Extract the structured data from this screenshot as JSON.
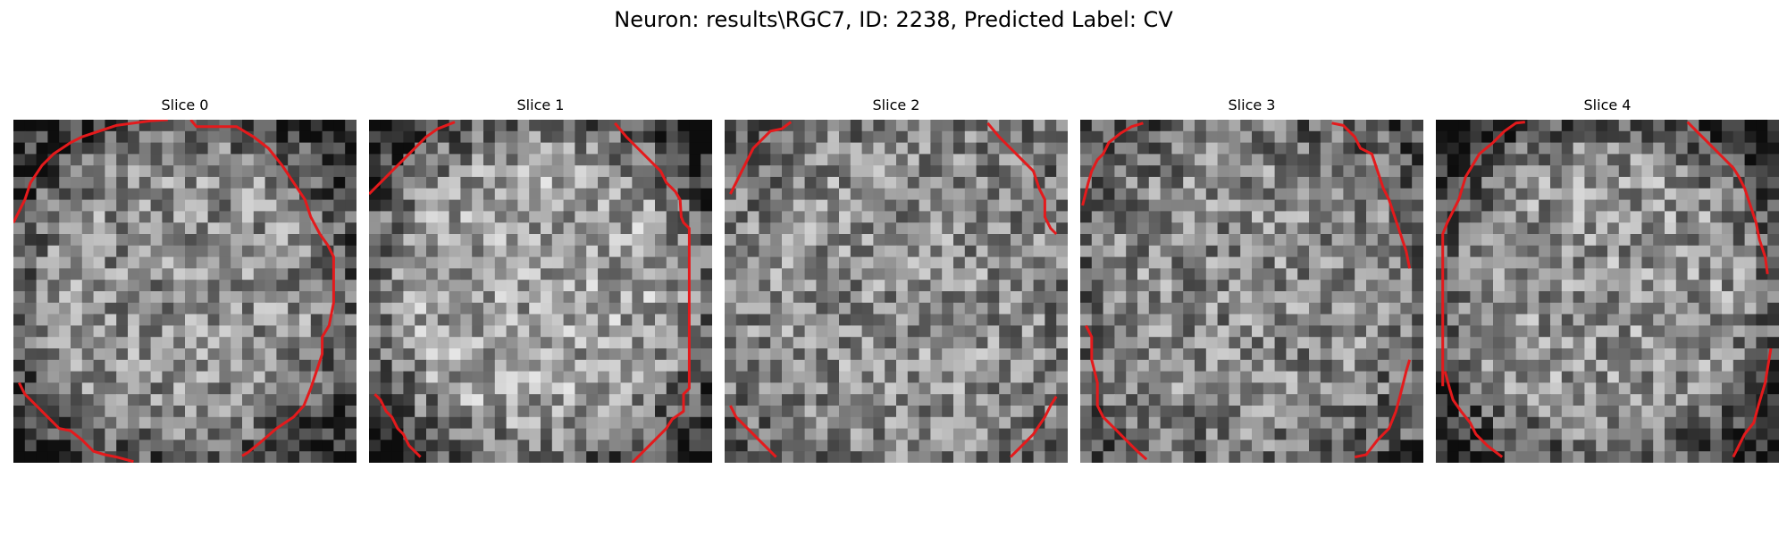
{
  "figure": {
    "title": "Neuron: results\\RGC7, ID: 2238, Predicted Label: CV"
  },
  "panels": [
    {
      "title": "Slice 0",
      "seed": 11,
      "vignette": 0.55,
      "brightness": 0.0
    },
    {
      "title": "Slice 1",
      "seed": 23,
      "vignette": 0.65,
      "brightness": 0.08
    },
    {
      "title": "Slice 2",
      "seed": 37,
      "vignette": 0.2,
      "brightness": 0.0
    },
    {
      "title": "Slice 3",
      "seed": 41,
      "vignette": 0.3,
      "brightness": -0.02
    },
    {
      "title": "Slice 4",
      "seed": 53,
      "vignette": 0.6,
      "brightness": 0.02
    }
  ],
  "colors": {
    "contour": "#e41a1c",
    "background": "#ffffff",
    "colormap": "gray"
  }
}
